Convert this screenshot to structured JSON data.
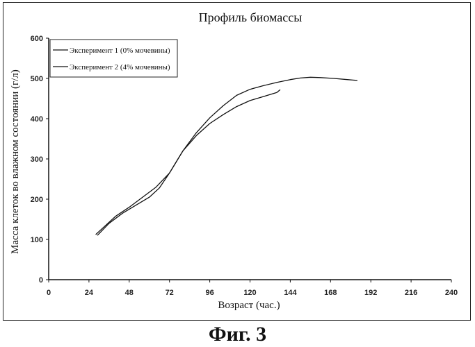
{
  "caption": "Фиг. 3",
  "chart_data": {
    "type": "line",
    "title": "Профиль биомассы",
    "xlabel": "Возраст (час.)",
    "ylabel": "Масса клеток во влажном состоянии (г/л)",
    "xlim": [
      0,
      240
    ],
    "ylim": [
      0,
      600
    ],
    "xticks": [
      "0",
      "24",
      "48",
      "72",
      "96",
      "120",
      "144",
      "168",
      "192",
      "216",
      "240"
    ],
    "yticks": [
      "0",
      "100",
      "200",
      "300",
      "400",
      "500",
      "600"
    ],
    "grid": false,
    "legend_position": "top-left",
    "series": [
      {
        "name": "Эксперимент 1 (0% мочевины)",
        "x": [
          29,
          36,
          44,
          52,
          60,
          66,
          72,
          80,
          88,
          96,
          104,
          112,
          120,
          128,
          136,
          144,
          150,
          156,
          162,
          170,
          178,
          184
        ],
        "y": [
          110,
          140,
          165,
          185,
          205,
          228,
          265,
          320,
          365,
          402,
          432,
          458,
          473,
          482,
          490,
          497,
          501,
          503,
          502,
          500,
          497,
          495
        ]
      },
      {
        "name": "Эксперимент 2 (4% мочевины)",
        "x": [
          28,
          34,
          40,
          48,
          56,
          64,
          72,
          80,
          88,
          96,
          104,
          112,
          120,
          128,
          136,
          138
        ],
        "y": [
          112,
          135,
          158,
          180,
          205,
          230,
          265,
          320,
          358,
          388,
          410,
          430,
          445,
          455,
          465,
          472
        ]
      }
    ]
  }
}
